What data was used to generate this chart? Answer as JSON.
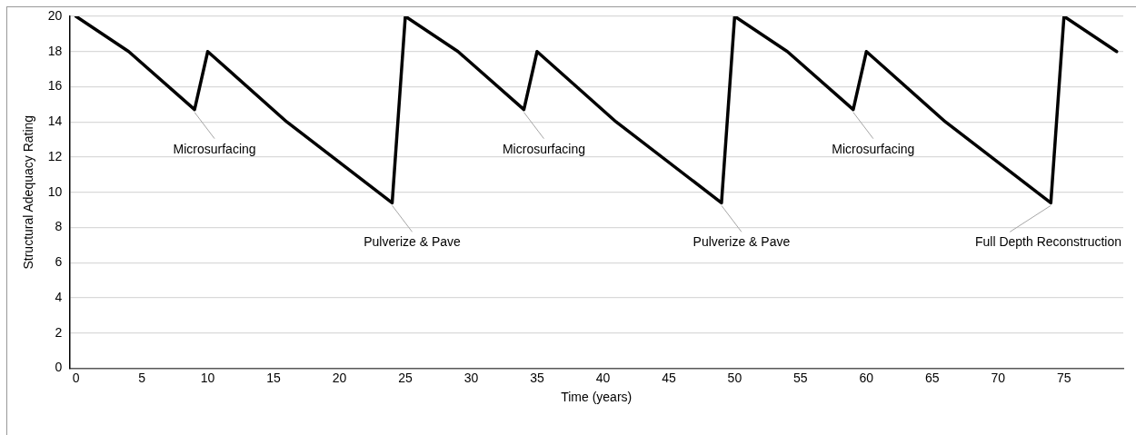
{
  "chart_data": {
    "type": "line",
    "xlabel": "Time (years)",
    "ylabel": "Structural Adequacy Rating",
    "x": [
      0,
      4,
      9,
      10,
      16,
      24,
      25,
      29,
      34,
      35,
      41,
      49,
      50,
      54,
      59,
      60,
      66,
      74,
      75,
      79
    ],
    "series": [
      {
        "color": "#000000",
        "values": [
          20,
          18,
          14.7,
          18,
          14,
          9.4,
          20,
          18,
          14.7,
          18,
          14,
          9.4,
          20,
          18,
          14.7,
          18,
          14,
          9.4,
          20,
          18
        ]
      }
    ],
    "xlim": [
      -0.5,
      79.5
    ],
    "xticks": [
      0,
      5,
      10,
      15,
      20,
      25,
      30,
      35,
      40,
      45,
      50,
      55,
      60,
      65,
      70,
      75
    ],
    "ylim": [
      0,
      20
    ],
    "yticks": [
      0,
      2,
      4,
      6,
      8,
      10,
      12,
      14,
      16,
      18,
      20
    ],
    "grid": "y",
    "legend": false,
    "marker": "none",
    "line_style": "solid",
    "annotations": [
      {
        "text": "Microsurfacing",
        "x": 9,
        "y": 14.7
      },
      {
        "text": "Pulverize & Pave",
        "x": 24,
        "y": 9.4
      },
      {
        "text": "Microsurfacing",
        "x": 34,
        "y": 14.7
      },
      {
        "text": "Pulverize & Pave",
        "x": 49,
        "y": 9.4
      },
      {
        "text": "Microsurfacing",
        "x": 59,
        "y": 14.7
      },
      {
        "text": "Full Depth Reconstruction",
        "x": 74,
        "y": 9.4
      }
    ]
  }
}
